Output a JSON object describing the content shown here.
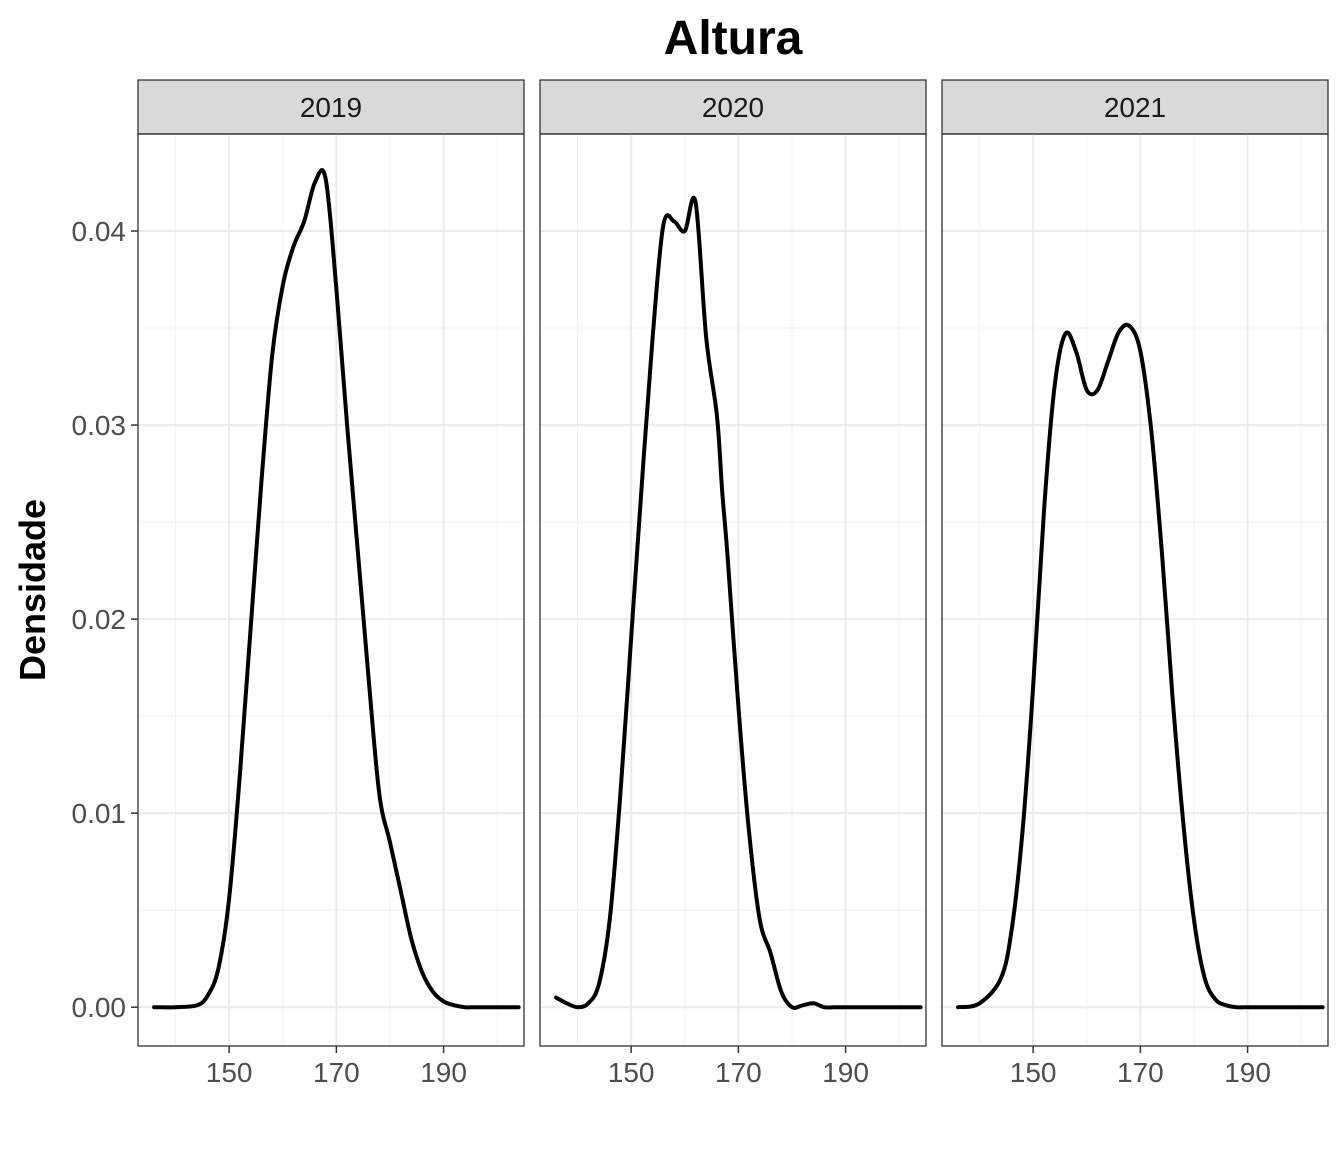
{
  "chart_data": {
    "type": "line",
    "title": "Altura",
    "xlabel": "",
    "ylabel": "Densidade",
    "xlim": [
      133,
      205
    ],
    "ylim": [
      -0.002,
      0.045
    ],
    "x_ticks": [
      150,
      170,
      190
    ],
    "y_ticks": [
      0.0,
      0.01,
      0.02,
      0.03,
      0.04
    ],
    "y_tick_labels": [
      "0.00",
      "0.01",
      "0.02",
      "0.03",
      "0.04"
    ],
    "grid": true,
    "line_color": "#000000",
    "panels": [
      {
        "label": "2019",
        "x": [
          136,
          140,
          144,
          146,
          148,
          150,
          152,
          154,
          156,
          158,
          160,
          162,
          164,
          166,
          168,
          170,
          172,
          174,
          176,
          178,
          180,
          182,
          184,
          186,
          188,
          190,
          192,
          194,
          196,
          198,
          200,
          202,
          204
        ],
        "y": [
          0.0,
          0.0,
          0.0001,
          0.0006,
          0.002,
          0.0056,
          0.012,
          0.0195,
          0.027,
          0.0335,
          0.0372,
          0.0392,
          0.0405,
          0.0425,
          0.0427,
          0.037,
          0.03,
          0.0235,
          0.017,
          0.011,
          0.0085,
          0.006,
          0.0035,
          0.0018,
          0.0008,
          0.0003,
          0.0001,
          0.0,
          0.0,
          0.0,
          0.0,
          0.0,
          0.0
        ]
      },
      {
        "label": "2020",
        "x": [
          136,
          138,
          140,
          142,
          144,
          146,
          148,
          150,
          152,
          154,
          156,
          158,
          160,
          162,
          164,
          166,
          167,
          168,
          170,
          172,
          174,
          176,
          178,
          180,
          182,
          184,
          186,
          188,
          190,
          192,
          194,
          196,
          198,
          200,
          202,
          204
        ],
        "y": [
          0.0005,
          0.0002,
          0.0,
          0.0002,
          0.0012,
          0.0045,
          0.011,
          0.019,
          0.027,
          0.0345,
          0.0403,
          0.0405,
          0.04,
          0.0415,
          0.0345,
          0.0305,
          0.0265,
          0.0232,
          0.0155,
          0.009,
          0.0045,
          0.0028,
          0.0008,
          0.0,
          0.0001,
          0.0002,
          0.0,
          0.0,
          0.0,
          0.0,
          0.0,
          0.0,
          0.0,
          0.0,
          0.0,
          0.0
        ]
      },
      {
        "label": "2021",
        "x": [
          136,
          140,
          144,
          146,
          148,
          150,
          152,
          154,
          156,
          158,
          160,
          162,
          164,
          166,
          168,
          170,
          172,
          174,
          176,
          178,
          180,
          182,
          184,
          186,
          188,
          190,
          192,
          194,
          196,
          198,
          200,
          202,
          204
        ],
        "y": [
          0.0,
          0.0002,
          0.0015,
          0.004,
          0.009,
          0.0165,
          0.0255,
          0.032,
          0.0347,
          0.0338,
          0.0318,
          0.0318,
          0.0333,
          0.0348,
          0.0351,
          0.0338,
          0.0298,
          0.0235,
          0.016,
          0.0095,
          0.0045,
          0.0015,
          0.0004,
          0.0001,
          0.0,
          0.0,
          0.0,
          0.0,
          0.0,
          0.0,
          0.0,
          0.0,
          0.0
        ]
      }
    ]
  }
}
